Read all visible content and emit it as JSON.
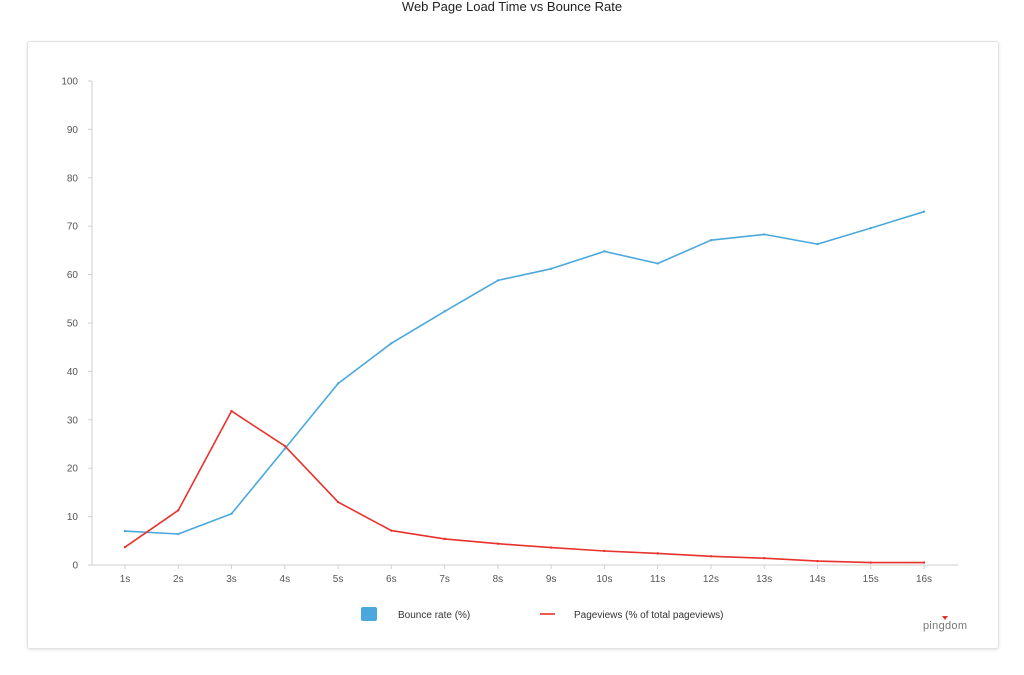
{
  "chart_data": {
    "type": "line",
    "title": "Web Page Load Time vs Bounce Rate",
    "xlabel": "",
    "ylabel": "",
    "categories": [
      "1s",
      "2s",
      "3s",
      "4s",
      "5s",
      "6s",
      "7s",
      "8s",
      "9s",
      "10s",
      "11s",
      "12s",
      "13s",
      "14s",
      "15s",
      "16s"
    ],
    "ylim": [
      0,
      100
    ],
    "yticks": [
      0,
      10,
      20,
      30,
      40,
      50,
      60,
      70,
      80,
      90,
      100
    ],
    "grid": false,
    "legend_position": "bottom",
    "series": [
      {
        "name": "Bounce rate  (%)",
        "color": "#4aa8dd",
        "legend_marker": "square",
        "values": [
          7,
          6.4,
          10.6,
          24,
          37.5,
          45.8,
          52.4,
          58.8,
          61.2,
          64.8,
          62.3,
          67.1,
          68.3,
          66.3,
          69.6,
          73
        ]
      },
      {
        "name": "Pageviews (% of total pageviews)",
        "color": "#e8322b",
        "legend_marker": "line",
        "values": [
          3.7,
          11.3,
          31.8,
          24.6,
          13,
          7.1,
          5.4,
          4.4,
          3.6,
          2.9,
          2.4,
          1.8,
          1.4,
          0.8,
          0.5,
          0.5
        ]
      }
    ]
  },
  "brand": {
    "name": "pingdom",
    "accent": "#e8322b"
  }
}
